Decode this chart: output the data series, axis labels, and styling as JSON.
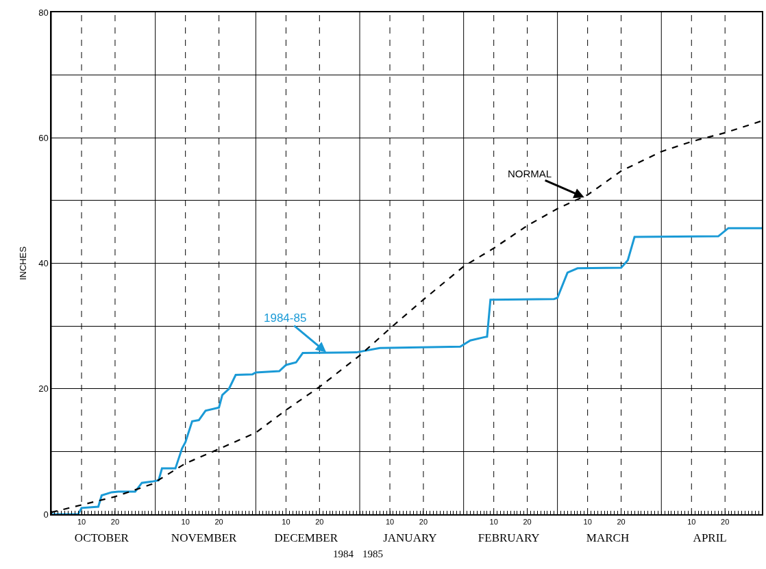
{
  "chart_data": {
    "type": "line",
    "ylabel": "INCHES",
    "xlim": [
      "1984-10-01",
      "1985-05-01"
    ],
    "ylim": [
      0,
      80
    ],
    "yticks": [
      0,
      {
        "value": 10,
        "label": null
      },
      20,
      {
        "value": 30,
        "label": null
      },
      40,
      {
        "value": 50,
        "label": null
      },
      60,
      {
        "value": 70,
        "label": null
      },
      80
    ],
    "xticks": [
      {
        "value": "1984-10-01",
        "label": null
      },
      {
        "value": "1984-10-10",
        "label": "10"
      },
      {
        "value": "1984-10-20",
        "label": "20"
      },
      {
        "value": "1984-11-01",
        "label": null
      },
      {
        "value": "1984-11-10",
        "label": "10"
      },
      {
        "value": "1984-11-20",
        "label": "20"
      },
      {
        "value": "1984-12-01",
        "label": null
      },
      {
        "value": "1984-12-10",
        "label": "10"
      },
      {
        "value": "1984-12-20",
        "label": "20"
      },
      {
        "value": "1985-01-01",
        "label": null
      },
      {
        "value": "1985-01-10",
        "label": "10"
      },
      {
        "value": "1985-01-20",
        "label": "20"
      },
      {
        "value": "1985-02-01",
        "label": null
      },
      {
        "value": "1985-02-10",
        "label": "10"
      },
      {
        "value": "1985-02-20",
        "label": "20"
      },
      {
        "value": "1985-03-01",
        "label": null
      },
      {
        "value": "1985-03-10",
        "label": "10"
      },
      {
        "value": "1985-03-20",
        "label": "20"
      },
      {
        "value": "1985-04-01",
        "label": null
      },
      {
        "value": "1985-04-10",
        "label": "10"
      },
      {
        "value": "1985-04-20",
        "label": "20"
      }
    ],
    "x2lim": [
      "1984-10-01",
      "1985-05-01"
    ],
    "x2ticks": [
      {
        "value": "1984-10-16",
        "label": "OCTOBER"
      },
      {
        "value": "1984-11-15T12:00",
        "label": "NOVEMBER"
      },
      {
        "value": "1984-12-16",
        "label": "DECEMBER"
      },
      {
        "value": "1985-01-16",
        "label": "JANUARY"
      },
      {
        "value": "1985-02-14T12:00",
        "label": "FEBRUARY"
      },
      {
        "value": "1985-03-16",
        "label": "MARCH"
      },
      {
        "value": "1985-04-15T12:00",
        "label": "APRIL"
      }
    ],
    "grid": true,
    "marker": "none",
    "annotations": [
      {
        "text": "1984-85",
        "x": "1984-12-22",
        "y": 25.8
      },
      {
        "text": "NORMAL",
        "x": "1985-03-09",
        "y": 50.5
      },
      "1984",
      "1985"
    ],
    "series": [
      {
        "color": "#1a9ad6",
        "line_style": "solid",
        "x": [
          "1984-10-01",
          "1984-10-09",
          "1984-10-10",
          "1984-10-15",
          "1984-10-16",
          "1984-10-19",
          "1984-10-21",
          "1984-10-26",
          "1984-10-27",
          "1984-10-28",
          "1984-10-31",
          "1984-11-02",
          "1984-11-03",
          "1984-11-07",
          "1984-11-09",
          "1984-11-10",
          "1984-11-12",
          "1984-11-14",
          "1984-11-16",
          "1984-11-20",
          "1984-11-21",
          "1984-11-23",
          "1984-11-25",
          "1984-11-30",
          "1984-12-01",
          "1984-12-08",
          "1984-12-10",
          "1984-12-13",
          "1984-12-15",
          "1984-12-31",
          "1985-01-07",
          "1985-01-31",
          "1985-02-03",
          "1985-02-07",
          "1985-02-08",
          "1985-02-09",
          "1985-02-28",
          "1985-03-01",
          "1985-03-04",
          "1985-03-07",
          "1985-03-20",
          "1985-03-22",
          "1985-03-24",
          "1985-04-18",
          "1985-04-21",
          "1985-05-01"
        ],
        "values": [
          0,
          0,
          1,
          1.2,
          3,
          3.5,
          3.6,
          3.6,
          4.3,
          5,
          5.2,
          5.4,
          7.3,
          7.3,
          10.5,
          11.5,
          14.8,
          15,
          16.5,
          17,
          19,
          20,
          22.2,
          22.3,
          22.6,
          22.8,
          23.8,
          24.2,
          25.7,
          25.8,
          26.5,
          26.7,
          27.7,
          28.2,
          28.3,
          34.2,
          34.3,
          34.5,
          38.5,
          39.2,
          39.3,
          40.5,
          44.2,
          44.3,
          45.6,
          45.6
        ]
      },
      {
        "color": "#000000",
        "line_style": "dashed",
        "x": [
          "1984-10-01",
          "1984-10-20",
          "1984-10-31",
          "1984-11-10",
          "1984-11-20",
          "1984-12-01",
          "1984-12-10",
          "1984-12-20",
          "1985-01-01",
          "1985-01-10",
          "1985-01-20",
          "1985-02-01",
          "1985-02-10",
          "1985-02-20",
          "1985-03-01",
          "1985-03-10",
          "1985-03-20",
          "1985-04-01",
          "1985-04-10",
          "1985-04-20",
          "1985-05-01"
        ],
        "values": [
          0.3,
          2.8,
          4.8,
          8.1,
          10.4,
          13,
          16.6,
          20.3,
          25.3,
          29.6,
          34.2,
          39.5,
          42.4,
          46,
          48.7,
          50.9,
          54.7,
          57.8,
          59.4,
          60.8,
          62.7
        ]
      }
    ]
  }
}
